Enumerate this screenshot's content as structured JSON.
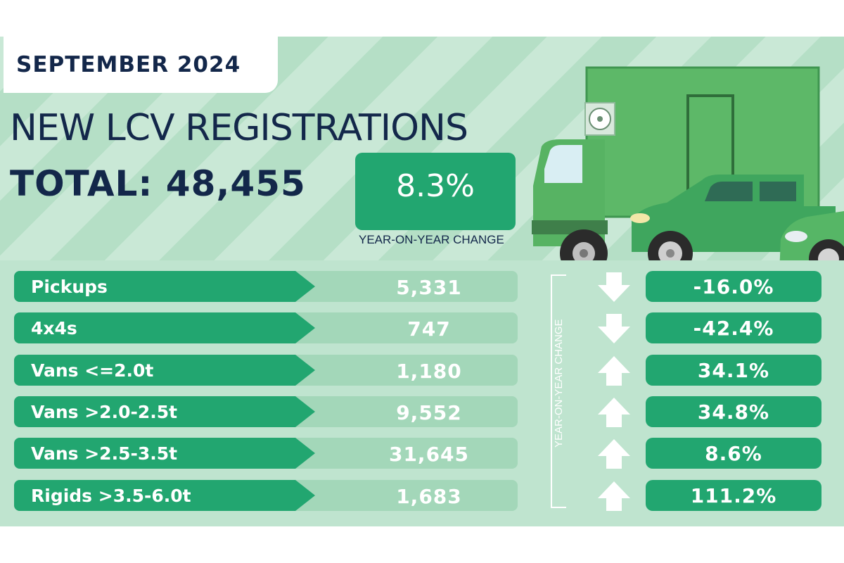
{
  "header": {
    "date": "SEPTEMBER 2024",
    "title": "NEW LCV REGISTRATIONS",
    "total": "TOTAL: 48,455",
    "yoy_value": "8.3%",
    "yoy_label": "YEAR-ON-YEAR CHANGE"
  },
  "table": {
    "change_axis_label": "YEAR-ON-YEAR CHANGE",
    "rows": [
      {
        "label": "Pickups",
        "value": "5,331",
        "change": "-16.0%",
        "direction": "down"
      },
      {
        "label": "4x4s",
        "value": "747",
        "change": "-42.4%",
        "direction": "down"
      },
      {
        "label": "Vans <=2.0t",
        "value": "1,180",
        "change": "34.1%",
        "direction": "up"
      },
      {
        "label": "Vans >2.0-2.5t",
        "value": "9,552",
        "change": "34.8%",
        "direction": "up"
      },
      {
        "label": "Vans >2.5-3.5t",
        "value": "31,645",
        "change": "8.6%",
        "direction": "up"
      },
      {
        "label": "Rigids >3.5-6.0t",
        "value": "1,683",
        "change": "111.2%",
        "direction": "up"
      }
    ]
  },
  "icons": {
    "down": "arrow-down-icon",
    "up": "arrow-up-icon"
  },
  "colors": {
    "navy": "#13274a",
    "green": "#22a670",
    "light_green": "#a3d7b9",
    "background": "#c9e8d6"
  }
}
